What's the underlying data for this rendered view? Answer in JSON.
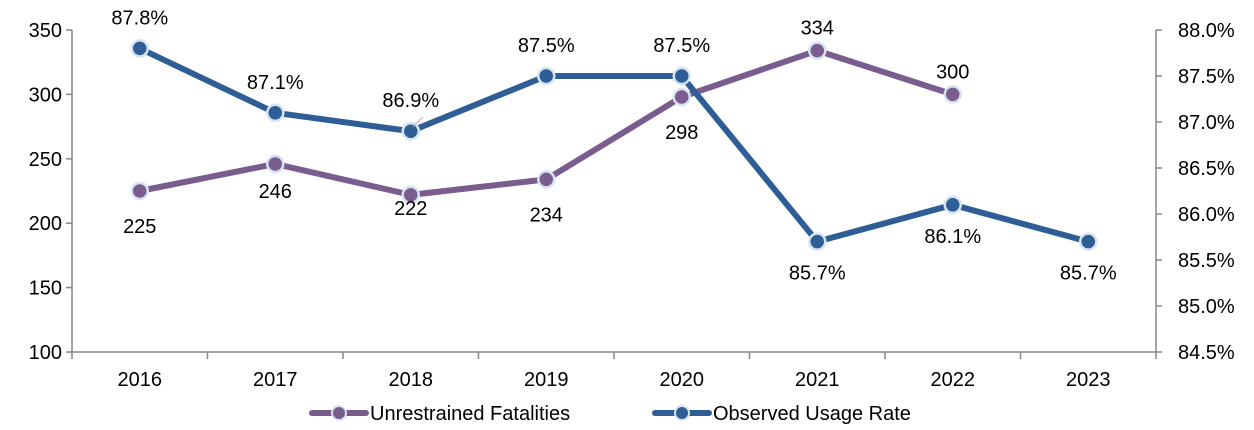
{
  "chart_data": {
    "type": "line",
    "categories": [
      "2016",
      "2017",
      "2018",
      "2019",
      "2020",
      "2021",
      "2022",
      "2023"
    ],
    "series": [
      {
        "name": "Unrestrained Fatalities",
        "axis": "left",
        "color": "#7B5C8E",
        "values": [
          225,
          246,
          222,
          234,
          298,
          334,
          300,
          null
        ],
        "labels": [
          "225",
          "246",
          "222",
          "234",
          "298",
          "334",
          "300",
          ""
        ]
      },
      {
        "name": "Observed Usage Rate",
        "axis": "right",
        "color": "#2E5E95",
        "values": [
          87.8,
          87.1,
          86.9,
          87.5,
          87.5,
          85.7,
          86.1,
          85.7
        ],
        "labels": [
          "87.8%",
          "87.1%",
          "86.9%",
          "87.5%",
          "87.5%",
          "85.7%",
          "86.1%",
          "85.7%"
        ]
      }
    ],
    "y_left": {
      "ylim": [
        100,
        350
      ],
      "ticks": [
        100,
        150,
        200,
        250,
        300,
        350
      ],
      "tick_labels": [
        "100",
        "150",
        "200",
        "250",
        "300",
        "350"
      ]
    },
    "y_right": {
      "ylim": [
        84.5,
        88.0
      ],
      "ticks": [
        84.5,
        85.0,
        85.5,
        86.0,
        86.5,
        87.0,
        87.5,
        88.0
      ],
      "tick_labels": [
        "84.5%",
        "85.0%",
        "85.5%",
        "86.0%",
        "86.5%",
        "87.0%",
        "87.5%",
        "88.0%"
      ]
    },
    "grid": false,
    "legend_position": "bottom"
  }
}
